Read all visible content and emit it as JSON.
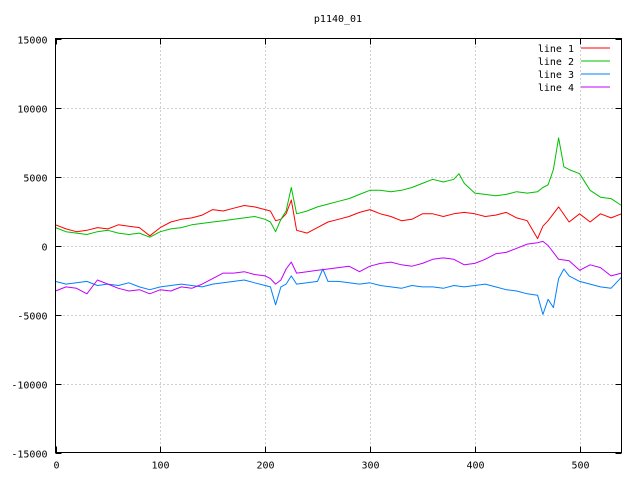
{
  "chart_data": {
    "type": "line",
    "title": "p1140_01",
    "xlim": [
      0,
      540
    ],
    "ylim": [
      -15000,
      15000
    ],
    "x_ticks": [
      0,
      100,
      200,
      300,
      400,
      500
    ],
    "y_ticks": [
      -15000,
      -10000,
      -5000,
      0,
      5000,
      10000,
      15000
    ],
    "grid": true,
    "legend_position": "top-right",
    "series": [
      {
        "name": "line 1",
        "color": "#ff0000",
        "x": [
          0,
          10,
          20,
          30,
          40,
          50,
          60,
          70,
          80,
          90,
          100,
          110,
          120,
          130,
          140,
          150,
          160,
          170,
          180,
          190,
          200,
          205,
          210,
          215,
          220,
          225,
          230,
          240,
          250,
          260,
          270,
          280,
          290,
          300,
          310,
          320,
          330,
          340,
          350,
          360,
          370,
          380,
          390,
          400,
          410,
          420,
          430,
          440,
          450,
          460,
          465,
          470,
          480,
          490,
          500,
          510,
          520,
          530,
          540
        ],
        "values": [
          1500,
          1200,
          1000,
          1100,
          1300,
          1200,
          1500,
          1400,
          1300,
          700,
          1300,
          1700,
          1900,
          2000,
          2200,
          2600,
          2500,
          2700,
          2900,
          2800,
          2600,
          2500,
          1800,
          1900,
          2300,
          3300,
          1100,
          900,
          1300,
          1700,
          1900,
          2100,
          2400,
          2600,
          2300,
          2100,
          1800,
          1900,
          2300,
          2300,
          2100,
          2300,
          2400,
          2300,
          2100,
          2200,
          2400,
          2000,
          1800,
          500,
          1400,
          1800,
          2800,
          1700,
          2300,
          1700,
          2300,
          2000,
          2300
        ]
      },
      {
        "name": "line 2",
        "color": "#00c000",
        "x": [
          0,
          10,
          20,
          30,
          40,
          50,
          60,
          70,
          80,
          90,
          100,
          110,
          120,
          130,
          140,
          150,
          160,
          170,
          180,
          190,
          200,
          205,
          210,
          215,
          220,
          225,
          230,
          240,
          250,
          260,
          270,
          280,
          290,
          300,
          310,
          320,
          330,
          340,
          350,
          360,
          370,
          380,
          385,
          390,
          400,
          410,
          420,
          430,
          440,
          450,
          460,
          465,
          470,
          475,
          480,
          485,
          490,
          500,
          510,
          520,
          530,
          540
        ],
        "values": [
          1300,
          1000,
          900,
          800,
          1000,
          1100,
          900,
          800,
          900,
          600,
          1000,
          1200,
          1300,
          1500,
          1600,
          1700,
          1800,
          1900,
          2000,
          2100,
          1900,
          1700,
          1000,
          1900,
          2500,
          4200,
          2300,
          2500,
          2800,
          3000,
          3200,
          3400,
          3700,
          4000,
          4000,
          3900,
          4000,
          4200,
          4500,
          4800,
          4600,
          4800,
          5200,
          4500,
          3800,
          3700,
          3600,
          3700,
          3900,
          3800,
          3900,
          4200,
          4400,
          5500,
          7800,
          5700,
          5500,
          5200,
          4000,
          3500,
          3400,
          2900
        ]
      },
      {
        "name": "line 3",
        "color": "#0080ff",
        "x": [
          0,
          10,
          20,
          30,
          40,
          50,
          60,
          70,
          80,
          90,
          100,
          110,
          120,
          130,
          140,
          150,
          160,
          170,
          180,
          190,
          200,
          205,
          210,
          215,
          220,
          225,
          230,
          240,
          250,
          255,
          260,
          270,
          280,
          290,
          300,
          310,
          320,
          330,
          340,
          350,
          360,
          370,
          380,
          390,
          400,
          410,
          420,
          430,
          440,
          450,
          460,
          465,
          470,
          475,
          480,
          485,
          490,
          500,
          510,
          520,
          530,
          540
        ],
        "values": [
          -2600,
          -2800,
          -2700,
          -2600,
          -2900,
          -2800,
          -2900,
          -2700,
          -3000,
          -3200,
          -3000,
          -2900,
          -2800,
          -2900,
          -3000,
          -2800,
          -2700,
          -2600,
          -2500,
          -2700,
          -2900,
          -3000,
          -4300,
          -3000,
          -2800,
          -2200,
          -2800,
          -2700,
          -2600,
          -1700,
          -2600,
          -2600,
          -2700,
          -2800,
          -2700,
          -2900,
          -3000,
          -3100,
          -2900,
          -3000,
          -3000,
          -3100,
          -2900,
          -3000,
          -2900,
          -2800,
          -3000,
          -3200,
          -3300,
          -3500,
          -3600,
          -5000,
          -3900,
          -4500,
          -2400,
          -1700,
          -2200,
          -2600,
          -2800,
          -3000,
          -3100,
          -2300
        ]
      },
      {
        "name": "line 4",
        "color": "#c000ff",
        "x": [
          0,
          10,
          20,
          30,
          40,
          50,
          60,
          70,
          80,
          90,
          100,
          110,
          120,
          130,
          140,
          150,
          160,
          170,
          180,
          190,
          200,
          205,
          210,
          215,
          220,
          225,
          230,
          240,
          250,
          260,
          270,
          280,
          290,
          300,
          310,
          320,
          330,
          340,
          350,
          360,
          370,
          380,
          390,
          400,
          410,
          420,
          430,
          440,
          450,
          460,
          465,
          470,
          480,
          490,
          500,
          510,
          520,
          530,
          540
        ],
        "values": [
          -3300,
          -3000,
          -3100,
          -3500,
          -2500,
          -2800,
          -3100,
          -3300,
          -3200,
          -3500,
          -3200,
          -3300,
          -3000,
          -3100,
          -2800,
          -2400,
          -2000,
          -2000,
          -1900,
          -2100,
          -2200,
          -2400,
          -2800,
          -2500,
          -1700,
          -1200,
          -2000,
          -1900,
          -1800,
          -1700,
          -1600,
          -1500,
          -1900,
          -1500,
          -1300,
          -1200,
          -1400,
          -1500,
          -1300,
          -1000,
          -900,
          -1000,
          -1400,
          -1300,
          -1000,
          -600,
          -500,
          -200,
          100,
          200,
          300,
          0,
          -1000,
          -1100,
          -1800,
          -1400,
          -1600,
          -2200,
          -2000
        ]
      }
    ]
  }
}
